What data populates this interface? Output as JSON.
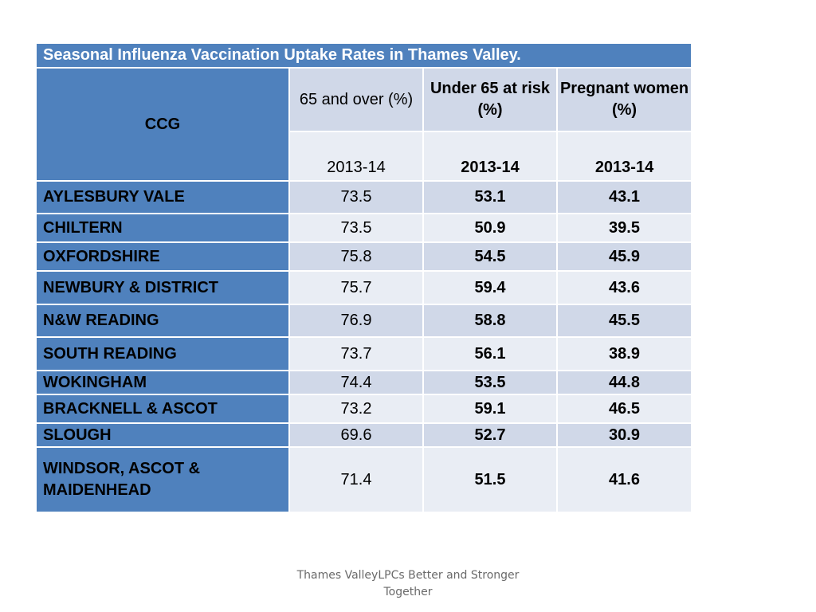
{
  "table": {
    "title": "Seasonal Influenza Vaccination Uptake Rates in Thames Valley.",
    "ccg_header": "CCG",
    "columns": [
      {
        "label": "65 and over (%)",
        "year": "2013-14"
      },
      {
        "label": "Under 65 at risk (%)",
        "year": "2013-14"
      },
      {
        "label": "Pregnant women (%)",
        "year": "2013-14"
      }
    ],
    "rows": [
      {
        "ccg": "AYLESBURY VALE",
        "v1": "73.5",
        "v2": "53.1",
        "v3": "43.1"
      },
      {
        "ccg": "CHILTERN",
        "v1": "73.5",
        "v2": "50.9",
        "v3": "39.5"
      },
      {
        "ccg": "OXFORDSHIRE",
        "v1": "75.8",
        "v2": "54.5",
        "v3": "45.9"
      },
      {
        "ccg": "NEWBURY & DISTRICT",
        "v1": "75.7",
        "v2": "59.4",
        "v3": "43.6"
      },
      {
        "ccg": "N&W READING",
        "v1": "76.9",
        "v2": "58.8",
        "v3": "45.5"
      },
      {
        "ccg": "SOUTH READING",
        "v1": "73.7",
        "v2": "56.1",
        "v3": "38.9"
      },
      {
        "ccg": "WOKINGHAM",
        "v1": "74.4",
        "v2": "53.5",
        "v3": "44.8"
      },
      {
        "ccg": "BRACKNELL & ASCOT",
        "v1": "73.2",
        "v2": "59.1",
        "v3": "46.5"
      },
      {
        "ccg": "SLOUGH",
        "v1": "69.6",
        "v2": "52.7",
        "v3": "30.9"
      },
      {
        "ccg": "WINDSOR, ASCOT & MAIDENHEAD",
        "v1": "71.4",
        "v2": "51.5",
        "v3": "41.6"
      }
    ]
  },
  "footer": {
    "text": "Thames ValleyLPCs   Better and Stronger Together"
  }
}
